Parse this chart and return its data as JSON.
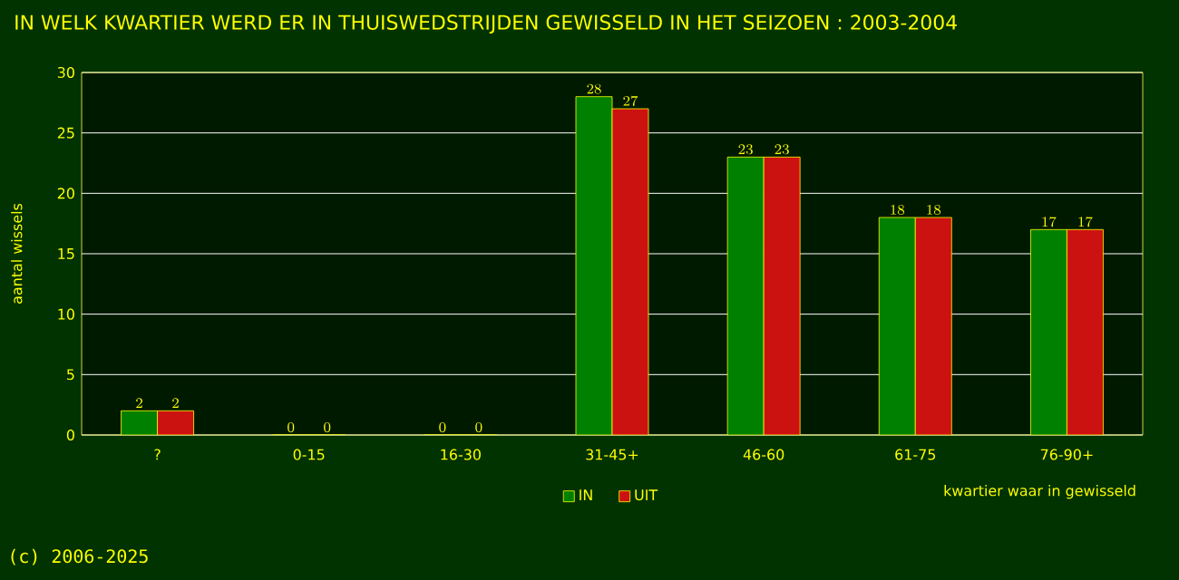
{
  "chart_data": {
    "type": "bar",
    "title": "IN WELK KWARTIER WERD ER IN THUISWEDSTRIJDEN GEWISSELD IN HET SEIZOEN : 2003-2004",
    "xlabel": "kwartier waar in gewisseld",
    "ylabel": "aantal wissels",
    "categories": [
      "?",
      "0-15",
      "16-30",
      "31-45+",
      "46-60",
      "61-75",
      "76-90+"
    ],
    "series": [
      {
        "name": "IN",
        "color": "#008000",
        "values": [
          2,
          0,
          0,
          28,
          23,
          18,
          17
        ]
      },
      {
        "name": "UIT",
        "color": "#cc1111",
        "values": [
          2,
          0,
          0,
          27,
          23,
          18,
          17
        ]
      }
    ],
    "ylim": [
      0,
      30
    ],
    "yticks": [
      0,
      5,
      10,
      15,
      20,
      25,
      30
    ],
    "grid": "y",
    "legend": "bottom",
    "data_labels": true,
    "annotations": [
      "(c) 2006-2025"
    ]
  }
}
